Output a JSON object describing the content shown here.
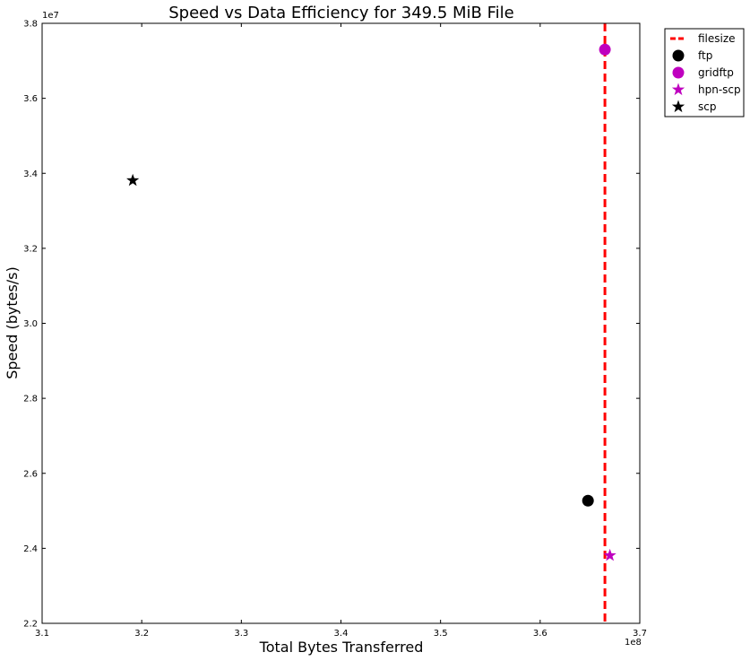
{
  "chart_data": {
    "type": "scatter",
    "title": "Speed vs Data Efficiency for 349.5 MiB File",
    "xlabel": "Total Bytes Transferred",
    "ylabel": "Speed (bytes/s)",
    "x_offset_label": "1e8",
    "y_offset_label": "1e7",
    "xlim": [
      3.1,
      3.7
    ],
    "ylim": [
      2.2,
      3.8
    ],
    "xticks": [
      "3.1",
      "3.2",
      "3.3",
      "3.4",
      "3.5",
      "3.6",
      "3.7"
    ],
    "yticks": [
      "2.2",
      "2.4",
      "2.6",
      "2.8",
      "3.0",
      "3.2",
      "3.4",
      "3.6",
      "3.8"
    ],
    "grid": false,
    "legend_position": "outside-top-right",
    "vline": {
      "name": "filesize",
      "x": 3.665,
      "color": "#ff0000",
      "style": "dashed"
    },
    "series": [
      {
        "name": "ftp",
        "marker": "circle",
        "color": "#000000",
        "x": [
          3.648
        ],
        "y": [
          2.527
        ]
      },
      {
        "name": "gridftp",
        "marker": "circle",
        "color": "#bf00bf",
        "x": [
          3.665
        ],
        "y": [
          3.73
        ]
      },
      {
        "name": "hpn-scp",
        "marker": "star",
        "color": "#bf00bf",
        "x": [
          3.67
        ],
        "y": [
          2.381
        ]
      },
      {
        "name": "scp",
        "marker": "star",
        "color": "#000000",
        "x": [
          3.191
        ],
        "y": [
          3.381
        ]
      }
    ]
  }
}
